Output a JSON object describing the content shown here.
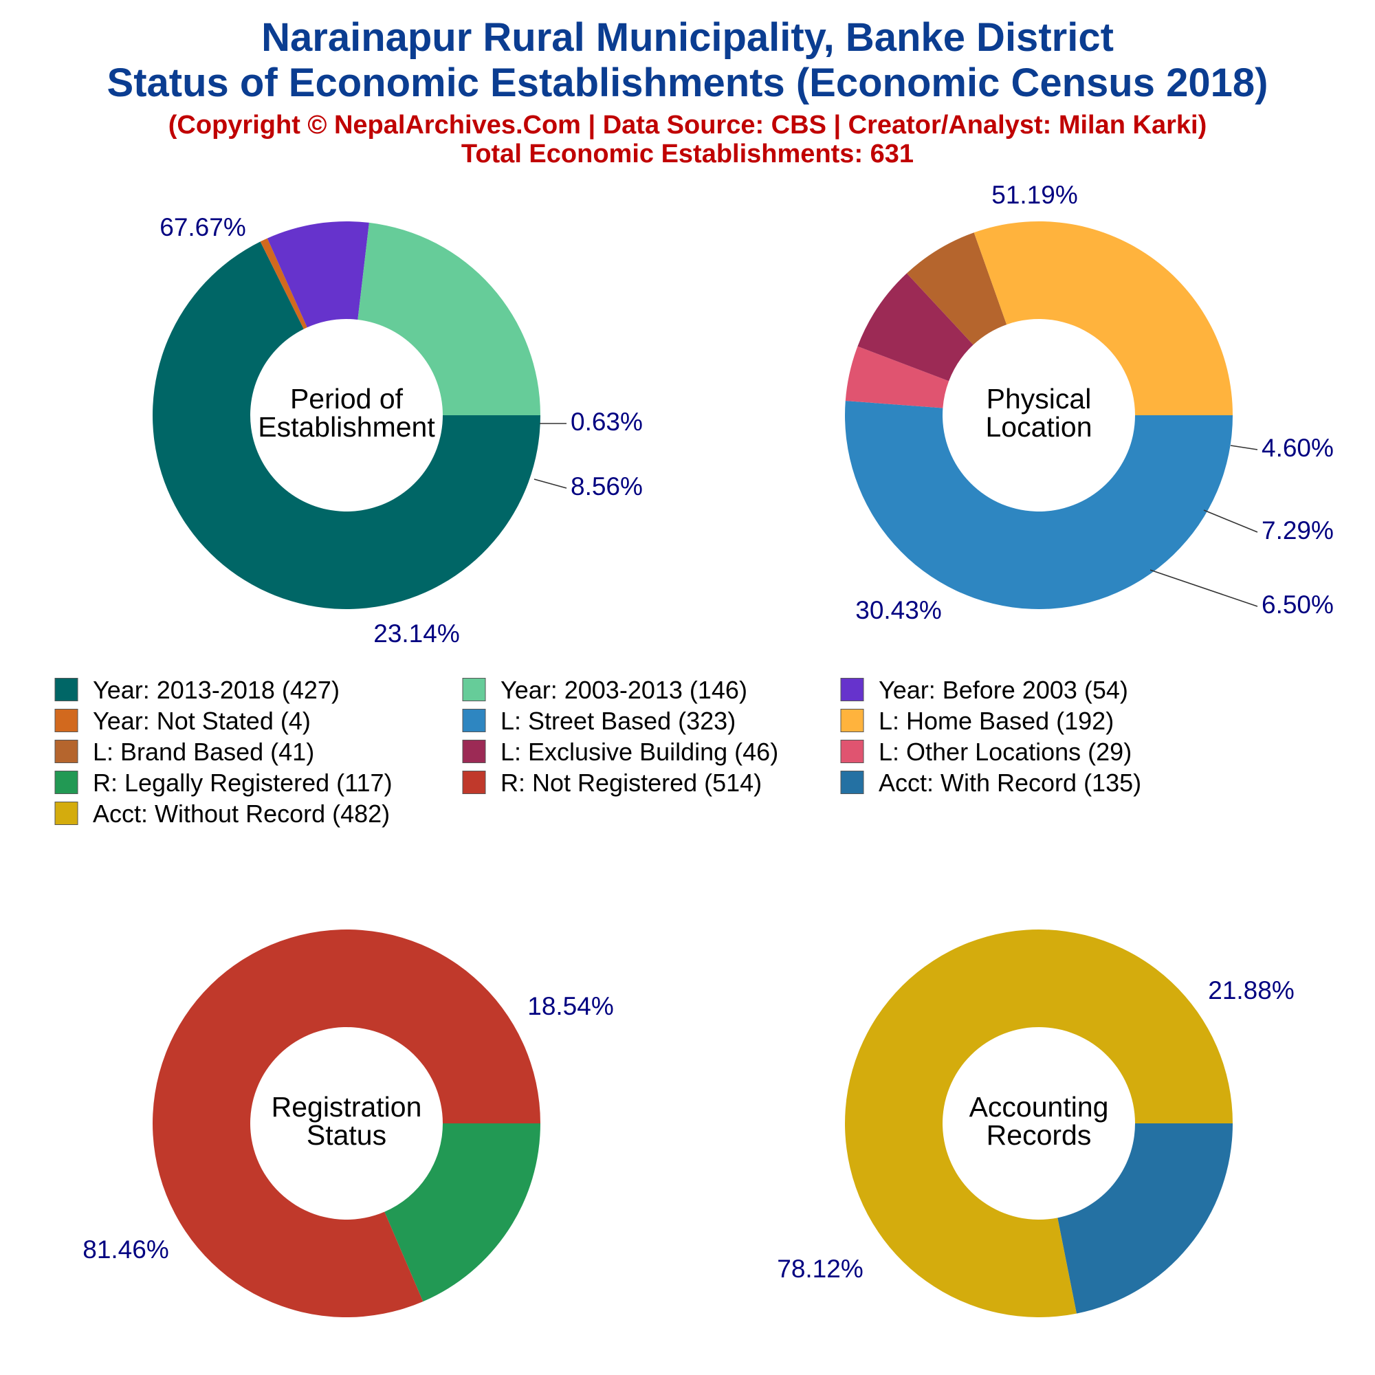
{
  "title": {
    "line1": "Narainapur Rural Municipality, Banke District",
    "line2": "Status of Economic Establishments (Economic Census 2018)",
    "copyright": "(Copyright © NepalArchives.Com | Data Source: CBS | Creator/Analyst: Milan Karki)",
    "total": "Total Economic Establishments: 631"
  },
  "chart_data": [
    {
      "type": "pie",
      "donut": true,
      "center_label": [
        "Period of",
        "Establishment"
      ],
      "slices": [
        {
          "label": "Year: 2013-2018",
          "value": 427,
          "pct": "67.67%",
          "color": "#006666"
        },
        {
          "label": "Year: Not Stated",
          "value": 4,
          "pct": "0.63%",
          "color": "#D2691E"
        },
        {
          "label": "Year: Before 2003",
          "value": 54,
          "pct": "8.56%",
          "color": "#6633CC"
        },
        {
          "label": "Year: 2003-2013",
          "value": 146,
          "pct": "23.14%",
          "color": "#66CC99"
        }
      ]
    },
    {
      "type": "pie",
      "donut": true,
      "center_label": [
        "Physical",
        "Location"
      ],
      "slices": [
        {
          "label": "L: Street Based",
          "value": 323,
          "pct": "51.19%",
          "color": "#2E86C1"
        },
        {
          "label": "L: Other Locations",
          "value": 29,
          "pct": "4.60%",
          "color": "#E05470"
        },
        {
          "label": "L: Exclusive Building",
          "value": 46,
          "pct": "7.29%",
          "color": "#9C2A55"
        },
        {
          "label": "L: Brand Based",
          "value": 41,
          "pct": "6.50%",
          "color": "#B5652D"
        },
        {
          "label": "L: Home Based",
          "value": 192,
          "pct": "30.43%",
          "color": "#FFB33D"
        }
      ]
    },
    {
      "type": "pie",
      "donut": true,
      "center_label": [
        "Registration",
        "Status"
      ],
      "slices": [
        {
          "label": "R: Legally Registered",
          "value": 117,
          "pct": "18.54%",
          "color": "#229954"
        },
        {
          "label": "R: Not Registered",
          "value": 514,
          "pct": "81.46%",
          "color": "#C0392B"
        }
      ]
    },
    {
      "type": "pie",
      "donut": true,
      "center_label": [
        "Accounting",
        "Records"
      ],
      "slices": [
        {
          "label": "Acct: With Record",
          "value": 135,
          "pct": "21.88%",
          "color": "#2471A3"
        },
        {
          "label": "Acct: Without Record",
          "value": 482,
          "pct": "78.12%",
          "color": "#D4AC0D"
        }
      ]
    }
  ],
  "legend": [
    {
      "text": "Year: 2013-2018 (427)",
      "color": "#006666"
    },
    {
      "text": "Year: 2003-2013 (146)",
      "color": "#66CC99"
    },
    {
      "text": "Year: Before 2003 (54)",
      "color": "#6633CC"
    },
    {
      "text": "Year: Not Stated (4)",
      "color": "#D2691E"
    },
    {
      "text": "L: Street Based (323)",
      "color": "#2E86C1"
    },
    {
      "text": "L: Home Based (192)",
      "color": "#FFB33D"
    },
    {
      "text": "L: Brand Based (41)",
      "color": "#B5652D"
    },
    {
      "text": "L: Exclusive Building (46)",
      "color": "#9C2A55"
    },
    {
      "text": "L: Other Locations (29)",
      "color": "#E05470"
    },
    {
      "text": "R: Legally Registered (117)",
      "color": "#229954"
    },
    {
      "text": "R: Not Registered (514)",
      "color": "#C0392B"
    },
    {
      "text": "Acct: With Record (135)",
      "color": "#2471A3"
    },
    {
      "text": "Acct: Without Record (482)",
      "color": "#D4AC0D"
    }
  ]
}
